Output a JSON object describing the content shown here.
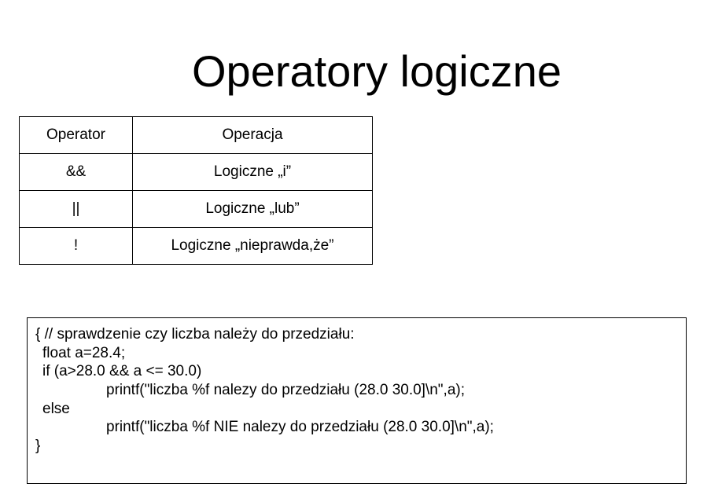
{
  "slide": {
    "title": "Operatory logiczne"
  },
  "table": {
    "headers": [
      "Operator",
      "Operacja"
    ],
    "rows": [
      {
        "operator": "&&",
        "operation": "Logiczne „i”"
      },
      {
        "operator": "||",
        "operation": "Logiczne „lub”"
      },
      {
        "operator": "!",
        "operation": "Logiczne „nieprawda,że”"
      }
    ]
  },
  "code": {
    "lines": [
      "{ // sprawdzenie czy liczba należy do przedziału:",
      "float a=28.4;",
      "if (a>28.0 && a <= 30.0)",
      "printf(\"liczba %f nalezy do przedziału (28.0 30.0]\\n\",a);",
      "else",
      "printf(\"liczba %f NIE nalezy do przedziału (28.0 30.0]\\n\",a);",
      "}"
    ]
  }
}
